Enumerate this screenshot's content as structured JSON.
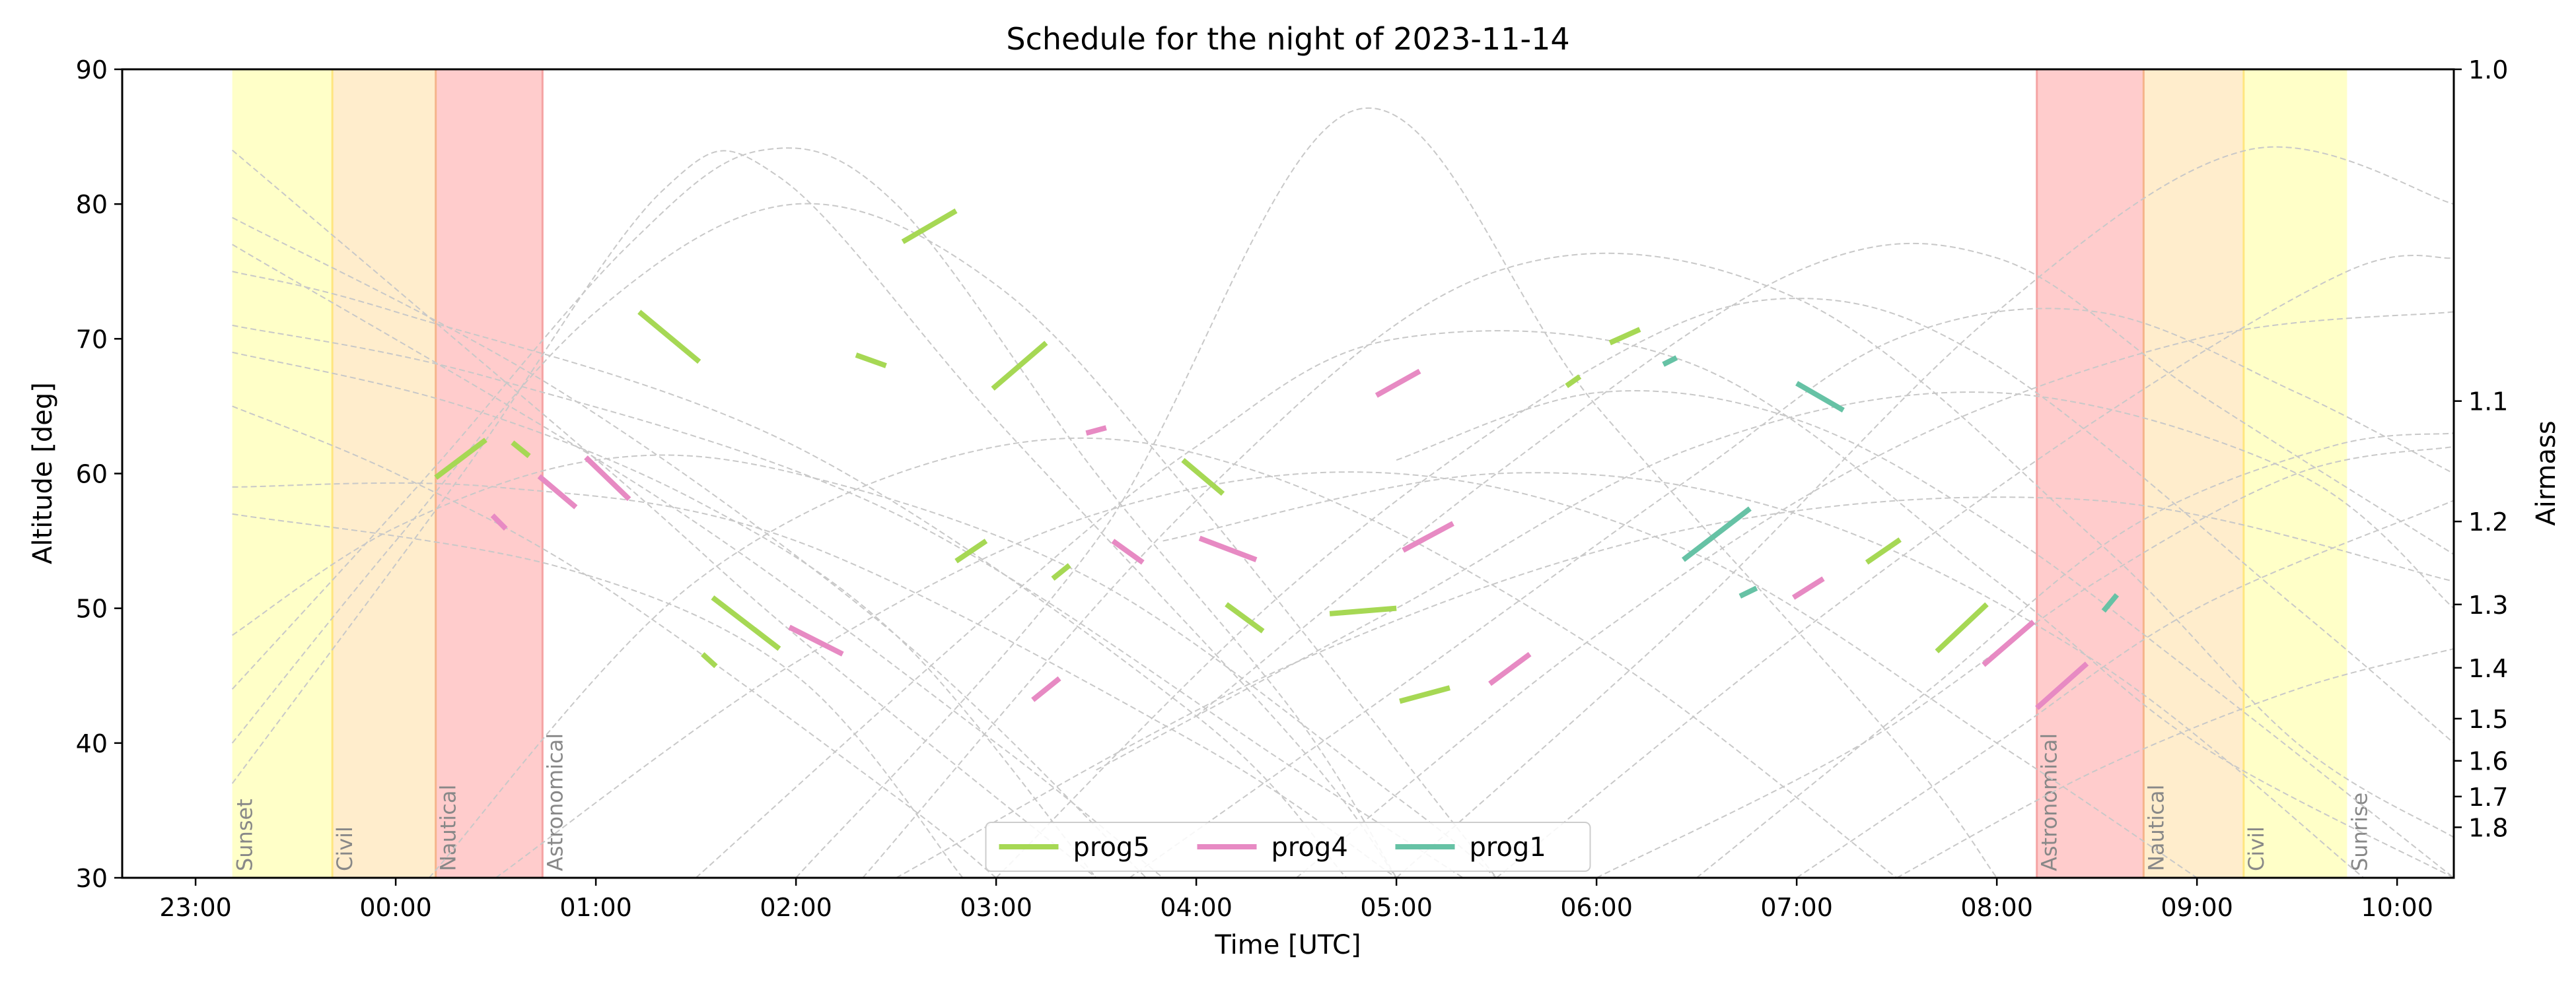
{
  "chart_data": {
    "type": "line",
    "title": "Schedule for the night of 2023-11-14",
    "xlabel": "Time [UTC]",
    "ylabel": "Altitude [deg]",
    "ylabel_right": "Airmass",
    "xlim": [
      "22:38",
      "10:17"
    ],
    "ylim": [
      30,
      90
    ],
    "x_ticks": [
      "23:00",
      "00:00",
      "01:00",
      "02:00",
      "03:00",
      "04:00",
      "05:00",
      "06:00",
      "07:00",
      "08:00",
      "09:00",
      "10:00"
    ],
    "y_ticks": [
      30,
      40,
      50,
      60,
      70,
      80,
      90
    ],
    "airmass_ticks": [
      1.0,
      1.1,
      1.2,
      1.3,
      1.4,
      1.5,
      1.6,
      1.7,
      1.8
    ],
    "twilight_bands": [
      {
        "label": "Sunset",
        "from": "23:11",
        "to": "23:41",
        "color": "#ffffc8"
      },
      {
        "label": "Civil",
        "from": "23:41",
        "to": "00:12",
        "color": "#ffedcc"
      },
      {
        "label": "Nautical",
        "from": "00:12",
        "to": "00:44",
        "color": "#ffcccc"
      },
      {
        "label": "Astronomical",
        "from": "08:12",
        "to": "08:44",
        "color": "#ffcccc"
      },
      {
        "label": "Nautical",
        "from": "08:44",
        "to": "09:14",
        "color": "#ffedcc"
      },
      {
        "label": "Civil",
        "from": "09:14",
        "to": "09:45",
        "color": "#ffffc8"
      }
    ],
    "twilight_labels": [
      {
        "text": "Sunset",
        "at": "23:11"
      },
      {
        "text": "Civil",
        "at": "23:41"
      },
      {
        "text": "Nautical",
        "at": "00:12"
      },
      {
        "text": "Astronomical",
        "at": "00:44"
      },
      {
        "text": "Astronomical",
        "at": "08:12"
      },
      {
        "text": "Nautical",
        "at": "08:44"
      },
      {
        "text": "Civil",
        "at": "09:14"
      },
      {
        "text": "Sunrise",
        "at": "09:45"
      }
    ],
    "legend_position": "lower center",
    "series": [
      {
        "name": "prog5",
        "color": "#a6d854",
        "segments": [
          [
            [
              "00:12",
              59.7
            ],
            [
              "00:27",
              62.5
            ]
          ],
          [
            [
              "00:35",
              62.3
            ],
            [
              "00:40",
              61.3
            ]
          ],
          [
            [
              "01:13",
              72.0
            ],
            [
              "01:31",
              68.3
            ]
          ],
          [
            [
              "01:32",
              46.6
            ],
            [
              "01:36",
              45.7
            ]
          ],
          [
            [
              "01:35",
              50.8
            ],
            [
              "01:55",
              47.0
            ]
          ],
          [
            [
              "02:18",
              68.8
            ],
            [
              "02:27",
              68.0
            ]
          ],
          [
            [
              "02:32",
              77.2
            ],
            [
              "02:48",
              79.5
            ]
          ],
          [
            [
              "02:48",
              53.5
            ],
            [
              "02:57",
              55.0
            ]
          ],
          [
            [
              "02:59",
              66.3
            ],
            [
              "03:15",
              69.7
            ]
          ],
          [
            [
              "03:17",
              52.2
            ],
            [
              "03:22",
              53.2
            ]
          ],
          [
            [
              "03:56",
              61.0
            ],
            [
              "04:08",
              58.5
            ]
          ],
          [
            [
              "04:09",
              50.3
            ],
            [
              "04:20",
              48.3
            ]
          ],
          [
            [
              "04:40",
              49.6
            ],
            [
              "05:00",
              50.0
            ]
          ],
          [
            [
              "05:01",
              43.1
            ],
            [
              "05:16",
              44.1
            ]
          ],
          [
            [
              "05:51",
              66.5
            ],
            [
              "05:55",
              67.2
            ]
          ],
          [
            [
              "06:04",
              69.7
            ],
            [
              "06:13",
              70.7
            ]
          ],
          [
            [
              "07:21",
              53.4
            ],
            [
              "07:31",
              55.1
            ]
          ],
          [
            [
              "07:42",
              46.8
            ],
            [
              "07:57",
              50.3
            ]
          ]
        ]
      },
      {
        "name": "prog4",
        "color": "#e78ac3",
        "segments": [
          [
            [
              "00:29",
              56.9
            ],
            [
              "00:33",
              55.9
            ]
          ],
          [
            [
              "00:43",
              59.8
            ],
            [
              "00:54",
              57.5
            ]
          ],
          [
            [
              "00:57",
              61.2
            ],
            [
              "01:10",
              58.1
            ]
          ],
          [
            [
              "01:58",
              48.6
            ],
            [
              "02:14",
              46.6
            ]
          ],
          [
            [
              "03:11",
              43.2
            ],
            [
              "03:19",
              44.8
            ]
          ],
          [
            [
              "03:27",
              63.0
            ],
            [
              "03:33",
              63.4
            ]
          ],
          [
            [
              "03:35",
              55.0
            ],
            [
              "03:44",
              53.4
            ]
          ],
          [
            [
              "04:01",
              55.2
            ],
            [
              "04:18",
              53.6
            ]
          ],
          [
            [
              "04:54",
              65.8
            ],
            [
              "05:07",
              67.6
            ]
          ],
          [
            [
              "05:02",
              54.3
            ],
            [
              "05:17",
              56.3
            ]
          ],
          [
            [
              "05:28",
              44.4
            ],
            [
              "05:40",
              46.6
            ]
          ],
          [
            [
              "06:59",
              50.8
            ],
            [
              "07:08",
              52.2
            ]
          ],
          [
            [
              "07:56",
              45.8
            ],
            [
              "08:11",
              49.0
            ]
          ],
          [
            [
              "08:12",
              42.6
            ],
            [
              "08:27",
              45.9
            ]
          ]
        ]
      },
      {
        "name": "prog1",
        "color": "#66c2a5",
        "segments": [
          [
            [
              "06:20",
              68.1
            ],
            [
              "06:24",
              68.6
            ]
          ],
          [
            [
              "06:26",
              53.6
            ],
            [
              "06:46",
              57.4
            ]
          ],
          [
            [
              "06:43",
              50.9
            ],
            [
              "06:48",
              51.5
            ]
          ],
          [
            [
              "07:00",
              66.7
            ],
            [
              "07:14",
              64.7
            ]
          ],
          [
            [
              "08:32",
              49.8
            ],
            [
              "08:36",
              51.0
            ]
          ]
        ]
      }
    ],
    "background_tracks": [
      [
        [
          "23:11",
          84
        ],
        [
          "01:05",
          60
        ],
        [
          "02:00",
          48
        ],
        [
          "03:30",
          30
        ]
      ],
      [
        [
          "23:11",
          79
        ],
        [
          "00:50",
          66
        ],
        [
          "02:30",
          48
        ],
        [
          "03:45",
          30
        ]
      ],
      [
        [
          "23:11",
          77
        ],
        [
          "01:20",
          58
        ],
        [
          "03:00",
          40
        ],
        [
          "03:50",
          30
        ]
      ],
      [
        [
          "23:11",
          75
        ],
        [
          "00:00",
          72
        ],
        [
          "02:00",
          62
        ],
        [
          "04:00",
          42
        ],
        [
          "04:45",
          30
        ]
      ],
      [
        [
          "23:11",
          71
        ],
        [
          "00:30",
          67
        ],
        [
          "02:30",
          57
        ],
        [
          "04:30",
          38
        ],
        [
          "05:20",
          30
        ]
      ],
      [
        [
          "23:11",
          69
        ],
        [
          "00:20",
          65
        ],
        [
          "01:30",
          58
        ],
        [
          "02:30",
          48
        ],
        [
          "03:30",
          30
        ]
      ],
      [
        [
          "23:11",
          65
        ],
        [
          "00:00",
          60
        ],
        [
          "01:00",
          52
        ],
        [
          "02:30",
          36
        ],
        [
          "03:00",
          30
        ]
      ],
      [
        [
          "23:11",
          59
        ],
        [
          "00:30",
          59
        ],
        [
          "02:00",
          55
        ],
        [
          "04:00",
          40
        ],
        [
          "05:00",
          30
        ]
      ],
      [
        [
          "23:11",
          57
        ],
        [
          "00:50",
          53
        ],
        [
          "02:00",
          45
        ],
        [
          "02:50",
          30
        ]
      ],
      [
        [
          "23:11",
          48
        ],
        [
          "00:00",
          56
        ],
        [
          "01:00",
          61
        ],
        [
          "02:00",
          60
        ],
        [
          "03:30",
          52
        ],
        [
          "05:00",
          36
        ],
        [
          "05:30",
          30
        ]
      ],
      [
        [
          "23:11",
          44
        ],
        [
          "00:10",
          60
        ],
        [
          "01:10",
          77
        ],
        [
          "01:50",
          84
        ],
        [
          "02:30",
          80
        ],
        [
          "03:30",
          60
        ],
        [
          "04:30",
          42
        ],
        [
          "05:00",
          30
        ]
      ],
      [
        [
          "23:11",
          40
        ],
        [
          "00:00",
          55
        ],
        [
          "01:00",
          72
        ],
        [
          "02:00",
          80
        ],
        [
          "03:00",
          74
        ],
        [
          "04:00",
          58
        ],
        [
          "05:30",
          30
        ]
      ],
      [
        [
          "23:11",
          37
        ],
        [
          "00:20",
          60
        ],
        [
          "01:20",
          81
        ],
        [
          "01:55",
          82
        ],
        [
          "03:00",
          64
        ],
        [
          "04:30",
          40
        ],
        [
          "05:00",
          30
        ]
      ],
      [
        [
          "00:10",
          30
        ],
        [
          "01:30",
          52
        ],
        [
          "03:00",
          62
        ],
        [
          "04:20",
          60
        ],
        [
          "06:00",
          47
        ],
        [
          "07:30",
          30
        ]
      ],
      [
        [
          "00:30",
          30
        ],
        [
          "02:00",
          46
        ],
        [
          "03:30",
          57
        ],
        [
          "05:00",
          60
        ],
        [
          "06:30",
          54
        ],
        [
          "08:00",
          40
        ],
        [
          "09:00",
          30
        ]
      ],
      [
        [
          "01:30",
          30
        ],
        [
          "03:00",
          50
        ],
        [
          "04:00",
          62
        ],
        [
          "05:00",
          70
        ],
        [
          "06:30",
          68
        ],
        [
          "08:00",
          52
        ],
        [
          "09:00",
          40
        ],
        [
          "10:17",
          30
        ]
      ],
      [
        [
          "02:00",
          30
        ],
        [
          "03:30",
          55
        ],
        [
          "04:48",
          87
        ],
        [
          "06:00",
          65
        ],
        [
          "07:30",
          40
        ],
        [
          "08:00",
          30
        ]
      ],
      [
        [
          "02:20",
          30
        ],
        [
          "04:00",
          58
        ],
        [
          "05:30",
          75
        ],
        [
          "07:00",
          73
        ],
        [
          "08:30",
          55
        ],
        [
          "09:30",
          40
        ],
        [
          "10:17",
          33
        ]
      ],
      [
        [
          "03:00",
          30
        ],
        [
          "04:30",
          52
        ],
        [
          "06:00",
          68
        ],
        [
          "07:00",
          73
        ],
        [
          "08:00",
          68
        ],
        [
          "09:30",
          50
        ],
        [
          "10:17",
          40
        ]
      ],
      [
        [
          "03:40",
          30
        ],
        [
          "05:00",
          44
        ],
        [
          "06:30",
          60
        ],
        [
          "07:30",
          70
        ],
        [
          "08:30",
          72
        ],
        [
          "09:30",
          66
        ],
        [
          "10:17",
          60
        ]
      ],
      [
        [
          "04:30",
          30
        ],
        [
          "06:00",
          48
        ],
        [
          "07:30",
          62
        ],
        [
          "09:00",
          70
        ],
        [
          "10:17",
          72
        ]
      ],
      [
        [
          "05:00",
          30
        ],
        [
          "06:30",
          50
        ],
        [
          "08:00",
          72
        ],
        [
          "09:15",
          84
        ],
        [
          "10:17",
          80
        ]
      ],
      [
        [
          "05:30",
          30
        ],
        [
          "07:00",
          48
        ],
        [
          "08:30",
          64
        ],
        [
          "09:45",
          75
        ],
        [
          "10:17",
          76
        ]
      ],
      [
        [
          "06:00",
          30
        ],
        [
          "07:20",
          40
        ],
        [
          "08:30",
          52
        ],
        [
          "09:30",
          60
        ],
        [
          "10:17",
          62
        ]
      ],
      [
        [
          "04:00",
          42
        ],
        [
          "05:30",
          60
        ],
        [
          "07:00",
          75
        ],
        [
          "08:00",
          76
        ],
        [
          "09:00",
          66
        ],
        [
          "10:17",
          54
        ]
      ],
      [
        [
          "03:30",
          38
        ],
        [
          "05:00",
          50
        ],
        [
          "06:30",
          62
        ],
        [
          "08:00",
          66
        ],
        [
          "09:30",
          60
        ],
        [
          "10:17",
          50
        ]
      ],
      [
        [
          "02:30",
          30
        ],
        [
          "04:30",
          46
        ],
        [
          "06:30",
          56
        ],
        [
          "08:30",
          58
        ],
        [
          "10:17",
          52
        ]
      ],
      [
        [
          "06:30",
          30
        ],
        [
          "07:40",
          44
        ],
        [
          "08:40",
          56
        ],
        [
          "09:40",
          62
        ],
        [
          "10:17",
          63
        ]
      ],
      [
        [
          "07:00",
          30
        ],
        [
          "08:00",
          40
        ],
        [
          "09:00",
          50
        ],
        [
          "10:17",
          58
        ]
      ],
      [
        [
          "05:00",
          61
        ],
        [
          "06:00",
          66
        ],
        [
          "07:00",
          64
        ],
        [
          "08:00",
          56
        ],
        [
          "09:00",
          45
        ],
        [
          "10:17",
          30
        ]
      ],
      [
        [
          "03:50",
          55
        ],
        [
          "05:30",
          60
        ],
        [
          "07:00",
          57
        ],
        [
          "08:30",
          46
        ],
        [
          "09:50",
          30
        ]
      ],
      [
        [
          "07:30",
          30
        ],
        [
          "08:30",
          38
        ],
        [
          "09:30",
          44
        ],
        [
          "10:17",
          47
        ]
      ]
    ]
  }
}
